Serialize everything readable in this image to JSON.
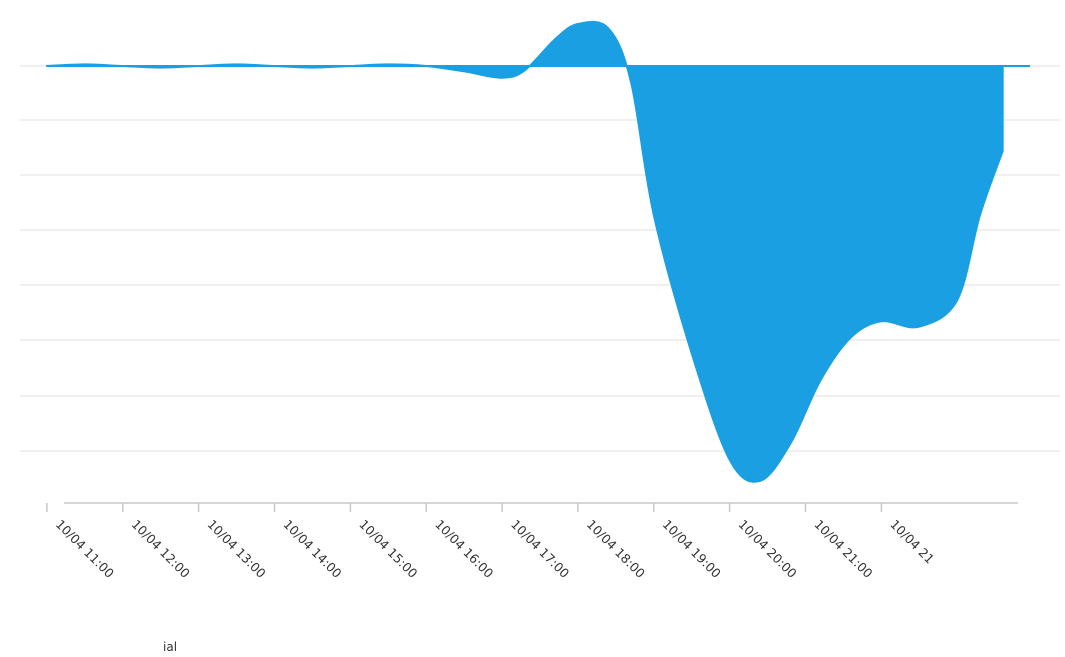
{
  "chart_data": {
    "type": "area",
    "title": "",
    "xlabel": "",
    "ylabel": "",
    "grid": true,
    "colors": {
      "area": "#1aa0e2",
      "grid": "#ececec",
      "axis": "#c8c8c8"
    },
    "categories": [
      "10/04 11:00",
      "10/04 12:00",
      "10/04 13:00",
      "10/04 14:00",
      "10/04 15:00",
      "10/04 16:00",
      "10/04 17:00",
      "10/04 18:00",
      "10/04 19:00",
      "10/04 20:00",
      "10/04 21:00",
      "10/04 21"
    ],
    "series": [
      {
        "name": "",
        "x": [
          10.0,
          10.5,
          11.0,
          11.5,
          12.0,
          12.5,
          13.0,
          13.5,
          14.0,
          14.5,
          15.0,
          15.5,
          16.0,
          16.3,
          16.7,
          17.0,
          17.4,
          17.7,
          18.0,
          18.5,
          19.0,
          19.4,
          19.8,
          20.2,
          20.6,
          21.0,
          21.5,
          22.0,
          22.3,
          22.6
        ],
        "values": [
          0.0,
          0.03,
          0.0,
          -0.03,
          0.0,
          0.03,
          0.0,
          -0.03,
          0.0,
          0.03,
          0.0,
          -0.1,
          -0.22,
          -0.08,
          0.5,
          0.78,
          0.7,
          -0.3,
          -2.8,
          -5.4,
          -7.4,
          -7.8,
          -7.1,
          -5.9,
          -5.1,
          -4.8,
          -4.9,
          -4.4,
          -2.8,
          -1.6
        ]
      }
    ],
    "legend": {
      "position": "bottom-left",
      "label": "ial"
    }
  }
}
